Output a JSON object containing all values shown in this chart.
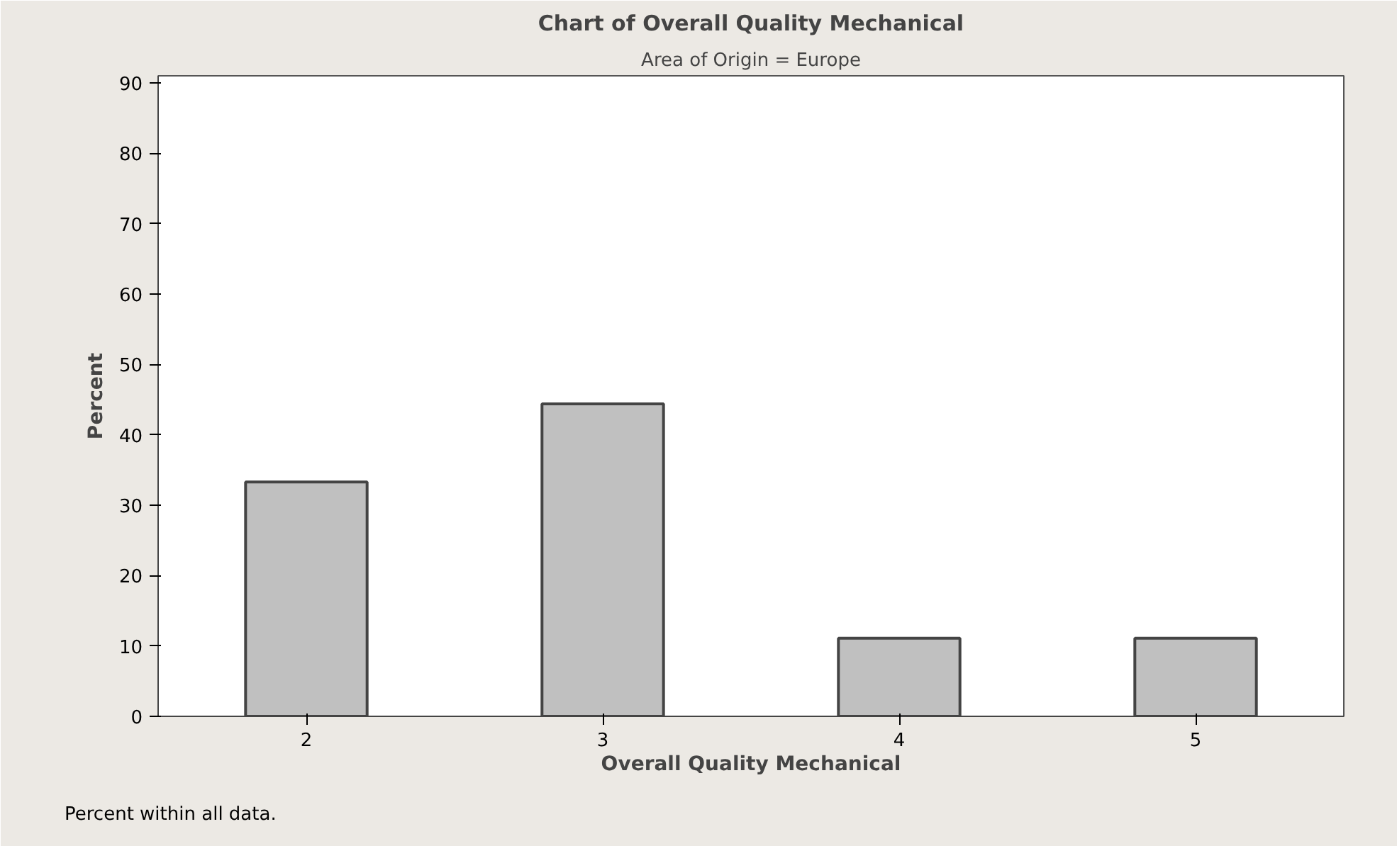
{
  "chart_data": {
    "type": "bar",
    "title": "Chart of Overall Quality Mechanical",
    "subtitle": "Area of Origin = Europe",
    "xlabel": "Overall Quality Mechanical",
    "ylabel": "Percent",
    "categories": [
      "2",
      "3",
      "4",
      "5"
    ],
    "values": [
      33.3,
      44.4,
      11.1,
      11.1
    ],
    "color": "#c0c0c0",
    "ylim": [
      0,
      91
    ],
    "yticks": [
      0,
      10,
      20,
      30,
      40,
      50,
      60,
      70,
      80,
      90
    ],
    "grid": false,
    "annotations": [
      "Percent within all data."
    ]
  }
}
